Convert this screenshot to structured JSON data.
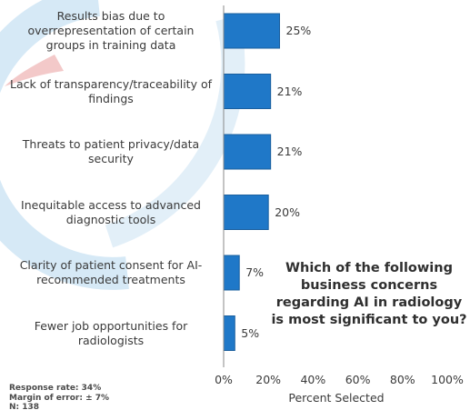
{
  "chart_data": {
    "type": "bar",
    "orientation": "horizontal",
    "categories": [
      "Results bias due to overrepresentation of certain groups in training data",
      "Lack of transparency/traceability of findings",
      "Threats to patient privacy/data security",
      "Inequitable access to advanced diagnostic tools",
      "Clarity of patient consent for AI-recommended treatments",
      "Fewer job opportunities for radiologists"
    ],
    "category_lines": [
      [
        "Results bias due to",
        "overrepresentation of certain",
        "groups in training data"
      ],
      [
        "Lack of transparency/traceability of",
        "findings"
      ],
      [
        "Threats to patient privacy/data",
        "security"
      ],
      [
        "Inequitable access to advanced",
        "diagnostic tools"
      ],
      [
        "Clarity of patient consent for AI-",
        "recommended treatments"
      ],
      [
        "Fewer job opportunities for",
        "radiologists"
      ]
    ],
    "values": [
      25,
      21,
      21,
      20,
      7,
      5
    ],
    "value_labels": [
      "25%",
      "21%",
      "21%",
      "20%",
      "7%",
      "5%"
    ],
    "xlim": [
      0,
      100
    ],
    "xticks": [
      0,
      20,
      40,
      60,
      80,
      100
    ],
    "xtick_labels": [
      "0%",
      "20%",
      "40%",
      "60%",
      "80%",
      "100%"
    ],
    "xlabel": "Percent Selected",
    "annotation": "Which of the following business concerns regarding AI in radiology is most significant to you?",
    "grid": false,
    "bar_color": "#1f78c8"
  },
  "footnotes": [
    "Response rate: 34%",
    "Margin of error: ± 7%",
    "N: 138"
  ]
}
